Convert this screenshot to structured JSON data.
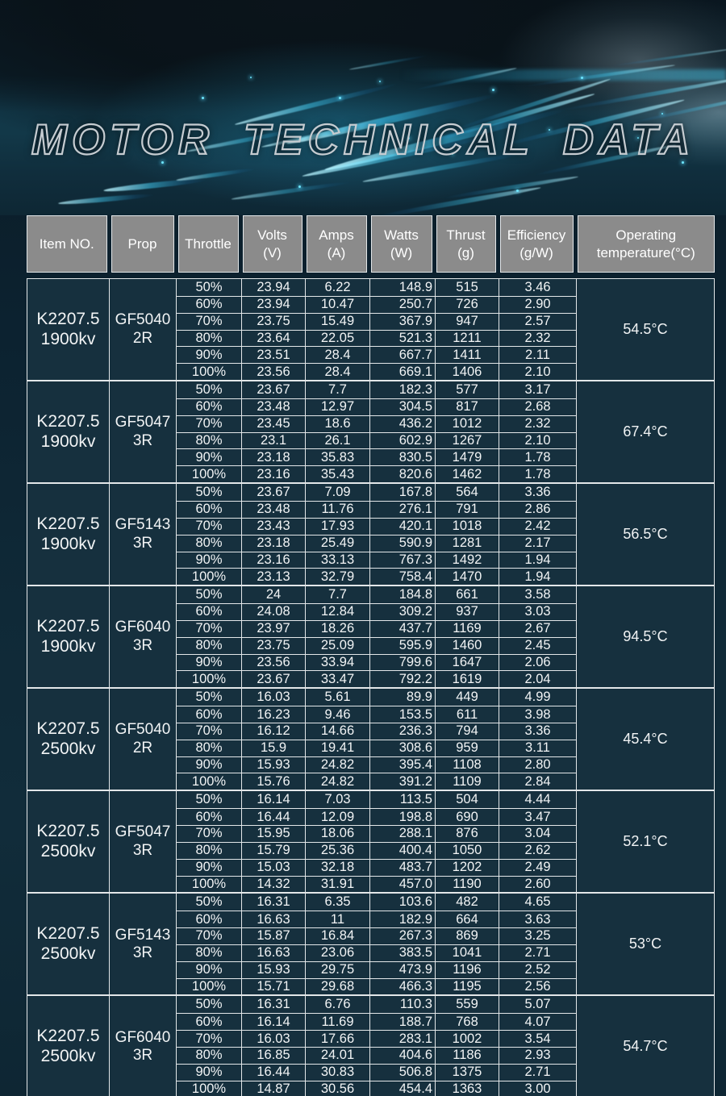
{
  "title": "MOTOR TECHNICAL DATA",
  "colors": {
    "accent_cyan": "#4fdcff",
    "header_bg": "#8b8b8b",
    "cell_bg": "#16303e",
    "table_border": "#e3e7e9",
    "text": "#f2f4f5",
    "title_stroke": "#c6ccd1"
  },
  "chart_data": {
    "type": "table",
    "title": "MOTOR TECHNICAL DATA",
    "columns": [
      "Item NO.",
      "Prop",
      "Throttle",
      "Volts (V)",
      "Amps (A)",
      "Watts (W)",
      "Thrust (g)",
      "Efficiency (g/W)",
      "Operating temperature(°C)"
    ],
    "header_lines": [
      [
        "Item NO."
      ],
      [
        "Prop"
      ],
      [
        "Throttle"
      ],
      [
        "Volts",
        "(V)"
      ],
      [
        "Amps",
        "(A)"
      ],
      [
        "Watts",
        "(W)"
      ],
      [
        "Thrust",
        "(g)"
      ],
      [
        "Efficiency",
        "(g/W)"
      ],
      [
        "Operating",
        "temperature(°C)"
      ]
    ],
    "row_columns": [
      "Throttle",
      "Volts (V)",
      "Amps (A)",
      "Watts (W)",
      "Thrust (g)",
      "Efficiency (g/W)"
    ],
    "groups": [
      {
        "item": [
          "K2207.5",
          "1900kv"
        ],
        "prop": [
          "GF5040",
          "2R"
        ],
        "temp": "54.5°C",
        "rows": [
          [
            "50%",
            "23.94",
            "6.22",
            "148.9",
            "515",
            "3.46"
          ],
          [
            "60%",
            "23.94",
            "10.47",
            "250.7",
            "726",
            "2.90"
          ],
          [
            "70%",
            "23.75",
            "15.49",
            "367.9",
            "947",
            "2.57"
          ],
          [
            "80%",
            "23.64",
            "22.05",
            "521.3",
            "1211",
            "2.32"
          ],
          [
            "90%",
            "23.51",
            "28.4",
            "667.7",
            "1411",
            "2.11"
          ],
          [
            "100%",
            "23.56",
            "28.4",
            "669.1",
            "1406",
            "2.10"
          ]
        ]
      },
      {
        "item": [
          "K2207.5",
          "1900kv"
        ],
        "prop": [
          "GF5047",
          "3R"
        ],
        "temp": "67.4°C",
        "rows": [
          [
            "50%",
            "23.67",
            "7.7",
            "182.3",
            "577",
            "3.17"
          ],
          [
            "60%",
            "23.48",
            "12.97",
            "304.5",
            "817",
            "2.68"
          ],
          [
            "70%",
            "23.45",
            "18.6",
            "436.2",
            "1012",
            "2.32"
          ],
          [
            "80%",
            "23.1",
            "26.1",
            "602.9",
            "1267",
            "2.10"
          ],
          [
            "90%",
            "23.18",
            "35.83",
            "830.5",
            "1479",
            "1.78"
          ],
          [
            "100%",
            "23.16",
            "35.43",
            "820.6",
            "1462",
            "1.78"
          ]
        ]
      },
      {
        "item": [
          "K2207.5",
          "1900kv"
        ],
        "prop": [
          "GF5143",
          "3R"
        ],
        "temp": "56.5°C",
        "rows": [
          [
            "50%",
            "23.67",
            "7.09",
            "167.8",
            "564",
            "3.36"
          ],
          [
            "60%",
            "23.48",
            "11.76",
            "276.1",
            "791",
            "2.86"
          ],
          [
            "70%",
            "23.43",
            "17.93",
            "420.1",
            "1018",
            "2.42"
          ],
          [
            "80%",
            "23.18",
            "25.49",
            "590.9",
            "1281",
            "2.17"
          ],
          [
            "90%",
            "23.16",
            "33.13",
            "767.3",
            "1492",
            "1.94"
          ],
          [
            "100%",
            "23.13",
            "32.79",
            "758.4",
            "1470",
            "1.94"
          ]
        ]
      },
      {
        "item": [
          "K2207.5",
          "1900kv"
        ],
        "prop": [
          "GF6040",
          "3R"
        ],
        "temp": "94.5°C",
        "rows": [
          [
            "50%",
            "24",
            "7.7",
            "184.8",
            "661",
            "3.58"
          ],
          [
            "60%",
            "24.08",
            "12.84",
            "309.2",
            "937",
            "3.03"
          ],
          [
            "70%",
            "23.97",
            "18.26",
            "437.7",
            "1169",
            "2.67"
          ],
          [
            "80%",
            "23.75",
            "25.09",
            "595.9",
            "1460",
            "2.45"
          ],
          [
            "90%",
            "23.56",
            "33.94",
            "799.6",
            "1647",
            "2.06"
          ],
          [
            "100%",
            "23.67",
            "33.47",
            "792.2",
            "1619",
            "2.04"
          ]
        ]
      },
      {
        "item": [
          "K2207.5",
          "2500kv"
        ],
        "prop": [
          "GF5040",
          "2R"
        ],
        "temp": "45.4°C",
        "rows": [
          [
            "50%",
            "16.03",
            "5.61",
            "89.9",
            "449",
            "4.99"
          ],
          [
            "60%",
            "16.23",
            "9.46",
            "153.5",
            "611",
            "3.98"
          ],
          [
            "70%",
            "16.12",
            "14.66",
            "236.3",
            "794",
            "3.36"
          ],
          [
            "80%",
            "15.9",
            "19.41",
            "308.6",
            "959",
            "3.11"
          ],
          [
            "90%",
            "15.93",
            "24.82",
            "395.4",
            "1108",
            "2.80"
          ],
          [
            "100%",
            "15.76",
            "24.82",
            "391.2",
            "1109",
            "2.84"
          ]
        ]
      },
      {
        "item": [
          "K2207.5",
          "2500kv"
        ],
        "prop": [
          "GF5047",
          "3R"
        ],
        "temp": "52.1°C",
        "rows": [
          [
            "50%",
            "16.14",
            "7.03",
            "113.5",
            "504",
            "4.44"
          ],
          [
            "60%",
            "16.44",
            "12.09",
            "198.8",
            "690",
            "3.47"
          ],
          [
            "70%",
            "15.95",
            "18.06",
            "288.1",
            "876",
            "3.04"
          ],
          [
            "80%",
            "15.79",
            "25.36",
            "400.4",
            "1050",
            "2.62"
          ],
          [
            "90%",
            "15.03",
            "32.18",
            "483.7",
            "1202",
            "2.49"
          ],
          [
            "100%",
            "14.32",
            "31.91",
            "457.0",
            "1190",
            "2.60"
          ]
        ]
      },
      {
        "item": [
          "K2207.5",
          "2500kv"
        ],
        "prop": [
          "GF5143",
          "3R"
        ],
        "temp": "53°C",
        "rows": [
          [
            "50%",
            "16.31",
            "6.35",
            "103.6",
            "482",
            "4.65"
          ],
          [
            "60%",
            "16.63",
            "11",
            "182.9",
            "664",
            "3.63"
          ],
          [
            "70%",
            "15.87",
            "16.84",
            "267.3",
            "869",
            "3.25"
          ],
          [
            "80%",
            "16.63",
            "23.06",
            "383.5",
            "1041",
            "2.71"
          ],
          [
            "90%",
            "15.93",
            "29.75",
            "473.9",
            "1196",
            "2.52"
          ],
          [
            "100%",
            "15.71",
            "29.68",
            "466.3",
            "1195",
            "2.56"
          ]
        ]
      },
      {
        "item": [
          "K2207.5",
          "2500kv"
        ],
        "prop": [
          "GF6040",
          "3R"
        ],
        "temp": "54.7°C",
        "rows": [
          [
            "50%",
            "16.31",
            "6.76",
            "110.3",
            "559",
            "5.07"
          ],
          [
            "60%",
            "16.14",
            "11.69",
            "188.7",
            "768",
            "4.07"
          ],
          [
            "70%",
            "16.03",
            "17.66",
            "283.1",
            "1002",
            "3.54"
          ],
          [
            "80%",
            "16.85",
            "24.01",
            "404.6",
            "1186",
            "2.93"
          ],
          [
            "90%",
            "16.44",
            "30.83",
            "506.8",
            "1375",
            "2.71"
          ],
          [
            "100%",
            "14.87",
            "30.56",
            "454.4",
            "1363",
            "3.00"
          ]
        ]
      }
    ]
  }
}
